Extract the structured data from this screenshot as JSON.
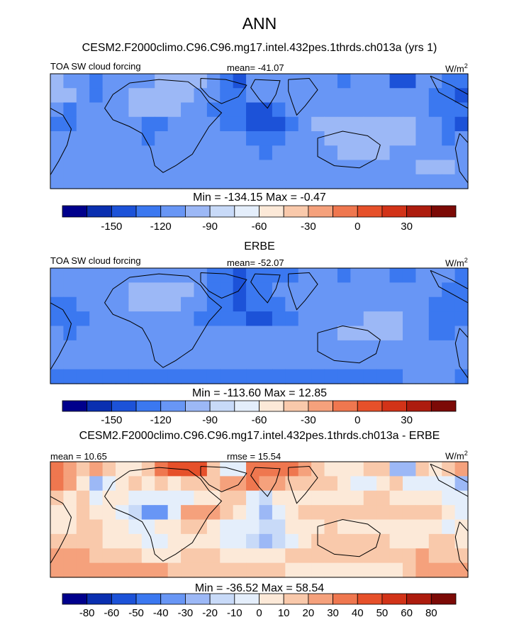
{
  "figure": {
    "title": "ANN"
  },
  "chart_data": [
    {
      "type": "heatmap",
      "subtitle": "CESM2.F2000climo.C96.C96.mg17.intel.432pes.1thrds.ch013a (yrs 1)",
      "left_label": "TOA SW cloud forcing",
      "center_label": "mean= -41.07",
      "units": "W/m",
      "units_sup": "2",
      "min_max": "Min = -134.15 Max =  -0.47",
      "colorbar": {
        "tick_labels": [
          "-150",
          "-120",
          "-90",
          "-60",
          "-30",
          "0",
          "30"
        ],
        "colors": [
          "#00008c",
          "#0a2fb0",
          "#1c52d8",
          "#3b78f0",
          "#6896f5",
          "#9cb8f6",
          "#c8daf8",
          "#e4eefb",
          "#fce9d8",
          "#f9c9ab",
          "#f5a17c",
          "#ef774f",
          "#e6502a",
          "#d23318",
          "#ad1c0e",
          "#7c0a06"
        ]
      },
      "grid": [
        [
          -30,
          -35,
          -60,
          -75,
          -55,
          -50,
          -55,
          -45,
          -20,
          -10,
          -10,
          -15,
          -60,
          -90,
          -105,
          -45,
          -40,
          -40,
          -35,
          -40,
          -45,
          -55,
          -65,
          -60,
          -45,
          -50,
          -95,
          -100,
          -50,
          -55,
          -75,
          -90
        ],
        [
          -25,
          -20,
          -45,
          -75,
          -55,
          -35,
          -20,
          -10,
          -5,
          -15,
          -15,
          -35,
          -60,
          -70,
          -75,
          -55,
          -50,
          -35,
          -35,
          -40,
          -40,
          -45,
          -55,
          -60,
          -55,
          -45,
          -35,
          -55,
          -55,
          -65,
          -80,
          -100
        ],
        [
          -60,
          -75,
          -45,
          -60,
          -55,
          -35,
          -25,
          -20,
          -25,
          -30,
          -40,
          -60,
          -70,
          -80,
          -85,
          -95,
          -100,
          -65,
          -55,
          -50,
          -45,
          -45,
          -50,
          -45,
          -35,
          -35,
          -45,
          -50,
          -55,
          -70,
          -85,
          -90
        ],
        [
          -70,
          -80,
          -55,
          -50,
          -55,
          -45,
          -55,
          -70,
          -75,
          -55,
          -40,
          -45,
          -55,
          -70,
          -85,
          -100,
          -120,
          -100,
          -65,
          -40,
          -30,
          -25,
          -25,
          -20,
          -20,
          -15,
          -20,
          -30,
          -40,
          -60,
          -80,
          -95
        ],
        [
          -50,
          -60,
          -40,
          -40,
          -50,
          -50,
          -60,
          -65,
          -55,
          -50,
          -45,
          -45,
          -50,
          -55,
          -60,
          -65,
          -75,
          -70,
          -55,
          -50,
          -45,
          -30,
          -20,
          -15,
          -15,
          -20,
          -20,
          -30,
          -45,
          -60,
          -75,
          -55
        ],
        [
          -40,
          -45,
          -40,
          -40,
          -50,
          -55,
          -60,
          -60,
          -50,
          -50,
          -50,
          -50,
          -50,
          -55,
          -55,
          -60,
          -65,
          -60,
          -55,
          -50,
          -40,
          -35,
          -30,
          -25,
          -25,
          -30,
          -40,
          -50,
          -55,
          -40,
          -35,
          -40
        ],
        [
          -35,
          -35,
          -35,
          -40,
          -45,
          -50,
          -45,
          -50,
          -55,
          -55,
          -50,
          -45,
          -45,
          -50,
          -50,
          -45,
          -50,
          -50,
          -45,
          -40,
          -45,
          -45,
          -40,
          -40,
          -40,
          -45,
          -45,
          -35,
          -30,
          -30,
          -30,
          -35
        ],
        [
          -40,
          -45,
          -45,
          -45,
          -45,
          -45,
          -40,
          -40,
          -45,
          -50,
          -55,
          -55,
          -55,
          -55,
          -55,
          -55,
          -55,
          -55,
          -50,
          -50,
          -50,
          -50,
          -55,
          -55,
          -55,
          -55,
          -55,
          -45,
          -40,
          -35,
          -35,
          -40
        ]
      ]
    },
    {
      "type": "heatmap",
      "subtitle": "ERBE",
      "left_label": "TOA SW cloud forcing",
      "center_label": "mean= -52.07",
      "units": "W/m",
      "units_sup": "2",
      "min_max": "Min = -113.60 Max =  12.85",
      "colorbar": {
        "tick_labels": [
          "-150",
          "-120",
          "-90",
          "-60",
          "-30",
          "0",
          "30"
        ],
        "colors": [
          "#00008c",
          "#0a2fb0",
          "#1c52d8",
          "#3b78f0",
          "#6896f5",
          "#9cb8f6",
          "#c8daf8",
          "#e4eefb",
          "#fce9d8",
          "#f9c9ab",
          "#f5a17c",
          "#ef774f",
          "#e6502a",
          "#d23318",
          "#ad1c0e",
          "#7c0a06"
        ]
      },
      "grid": [
        [
          -60,
          -55,
          -45,
          -40,
          -45,
          -55,
          -60,
          -55,
          -50,
          -50,
          -55,
          -60,
          -70,
          -85,
          -100,
          -80,
          -70,
          -70,
          -65,
          -60,
          -60,
          -60,
          -65,
          -60,
          -55,
          -60,
          -65,
          -70,
          -60,
          -55,
          -60,
          -65
        ],
        [
          -55,
          -45,
          -40,
          -45,
          -45,
          -35,
          -20,
          -15,
          -15,
          -20,
          -30,
          -50,
          -70,
          -90,
          -100,
          -90,
          -75,
          -60,
          -50,
          -50,
          -55,
          -55,
          -55,
          -55,
          -50,
          -45,
          -45,
          -50,
          -55,
          -60,
          -70,
          -75
        ],
        [
          -70,
          -80,
          -60,
          -55,
          -55,
          -40,
          -20,
          -15,
          -15,
          -20,
          -35,
          -60,
          -75,
          -90,
          -95,
          -85,
          -80,
          -70,
          -55,
          -55,
          -50,
          -50,
          -50,
          -50,
          -45,
          -45,
          -45,
          -50,
          -55,
          -70,
          -80,
          -85
        ],
        [
          -75,
          -85,
          -65,
          -55,
          -55,
          -40,
          -35,
          -35,
          -40,
          -45,
          -60,
          -70,
          -75,
          -85,
          -90,
          -95,
          -95,
          -90,
          -65,
          -55,
          -45,
          -40,
          -40,
          -35,
          -30,
          -30,
          -30,
          -45,
          -55,
          -70,
          -85,
          -90
        ],
        [
          -55,
          -65,
          -55,
          -50,
          -55,
          -50,
          -55,
          -60,
          -55,
          -55,
          -55,
          -55,
          -50,
          -50,
          -55,
          -60,
          -60,
          -55,
          -55,
          -55,
          -50,
          -40,
          -25,
          -20,
          -20,
          -25,
          -25,
          -35,
          -50,
          -65,
          -70,
          -55
        ],
        [
          -50,
          -55,
          -55,
          -50,
          -55,
          -60,
          -60,
          -55,
          -45,
          -50,
          -55,
          -55,
          -55,
          -50,
          -50,
          -45,
          -40,
          -40,
          -45,
          -55,
          -55,
          -50,
          -40,
          -35,
          -35,
          -40,
          -45,
          -55,
          -60,
          -50,
          -45,
          -45
        ],
        [
          -55,
          -55,
          -55,
          -55,
          -55,
          -60,
          -55,
          -55,
          -60,
          -60,
          -60,
          -55,
          -55,
          -55,
          -55,
          -50,
          -55,
          -55,
          -55,
          -55,
          -55,
          -55,
          -55,
          -55,
          -55,
          -55,
          -55,
          -50,
          -50,
          -45,
          -45,
          -50
        ],
        [
          -65,
          -65,
          -65,
          -65,
          -65,
          -65,
          -65,
          -65,
          -65,
          -65,
          -65,
          -65,
          -65,
          -65,
          -65,
          -65,
          -65,
          -65,
          -65,
          -65,
          -65,
          -65,
          -65,
          -65,
          -65,
          -65,
          -65,
          -60,
          -60,
          -60,
          -60,
          -65
        ]
      ]
    },
    {
      "type": "heatmap",
      "subtitle": "CESM2.F2000climo.C96.C96.mg17.intel.432pes.1thrds.ch013a - ERBE",
      "left_label": "mean =  10.65",
      "center_label": "rmse =  15.54",
      "units": "W/m",
      "units_sup": "2",
      "min_max": "Min = -36.52 Max =  58.54",
      "colorbar": {
        "tick_labels": [
          "-80",
          "-60",
          "-50",
          "-40",
          "-30",
          "-20",
          "-10",
          "0",
          "10",
          "20",
          "30",
          "40",
          "50",
          "60",
          "80"
        ],
        "colors": [
          "#00008c",
          "#0a2fb0",
          "#1c52d8",
          "#3b78f0",
          "#6896f5",
          "#9cb8f6",
          "#c8daf8",
          "#e4eefb",
          "#fce9d8",
          "#f9c9ab",
          "#f5a17c",
          "#ef774f",
          "#e6502a",
          "#d23318",
          "#ad1c0e",
          "#7c0a06"
        ]
      },
      "grid": [
        [
          30,
          20,
          15,
          25,
          10,
          5,
          5,
          10,
          30,
          40,
          45,
          45,
          10,
          -5,
          -5,
          35,
          30,
          30,
          30,
          20,
          15,
          5,
          0,
          0,
          10,
          10,
          -30,
          -30,
          10,
          5,
          15,
          25
        ],
        [
          30,
          25,
          5,
          -30,
          -10,
          0,
          15,
          5,
          10,
          5,
          15,
          15,
          10,
          20,
          25,
          35,
          25,
          25,
          15,
          10,
          15,
          10,
          0,
          -5,
          -5,
          0,
          10,
          -5,
          -5,
          -5,
          -10,
          -25
        ],
        [
          10,
          5,
          15,
          -5,
          0,
          5,
          -5,
          -5,
          -10,
          -10,
          -5,
          0,
          5,
          10,
          10,
          -10,
          -20,
          5,
          0,
          5,
          5,
          5,
          0,
          5,
          10,
          10,
          0,
          0,
          0,
          0,
          -5,
          -5
        ],
        [
          5,
          5,
          10,
          5,
          0,
          -5,
          -20,
          -35,
          -35,
          -10,
          20,
          25,
          20,
          15,
          5,
          -5,
          -25,
          -10,
          0,
          15,
          15,
          15,
          15,
          15,
          10,
          15,
          10,
          15,
          15,
          10,
          5,
          -5
        ],
        [
          5,
          5,
          15,
          10,
          5,
          0,
          -5,
          -5,
          0,
          5,
          10,
          10,
          0,
          -5,
          -5,
          -5,
          -15,
          -15,
          0,
          5,
          5,
          10,
          5,
          5,
          5,
          5,
          5,
          5,
          5,
          5,
          -5,
          0
        ],
        [
          10,
          10,
          15,
          10,
          5,
          5,
          0,
          -5,
          -5,
          0,
          5,
          5,
          5,
          -5,
          -5,
          -15,
          -25,
          -20,
          -10,
          5,
          15,
          15,
          10,
          10,
          10,
          10,
          5,
          5,
          5,
          10,
          10,
          5
        ],
        [
          20,
          20,
          20,
          15,
          10,
          10,
          10,
          5,
          5,
          5,
          10,
          10,
          10,
          5,
          5,
          5,
          5,
          5,
          10,
          15,
          10,
          10,
          15,
          15,
          15,
          10,
          10,
          15,
          20,
          15,
          15,
          15
        ],
        [
          25,
          20,
          20,
          20,
          20,
          20,
          25,
          25,
          20,
          15,
          10,
          10,
          10,
          10,
          10,
          10,
          10,
          10,
          5,
          5,
          5,
          5,
          0,
          0,
          0,
          0,
          5,
          15,
          20,
          25,
          25,
          25
        ]
      ]
    }
  ]
}
